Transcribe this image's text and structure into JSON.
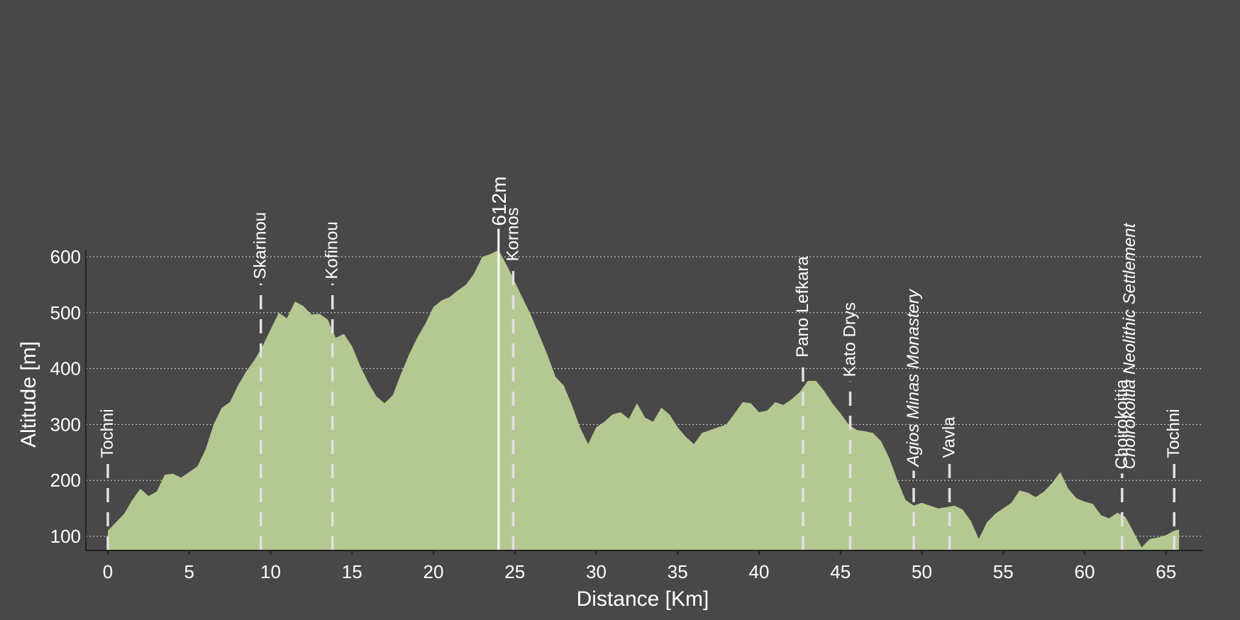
{
  "chart_data": {
    "type": "area",
    "title": "",
    "xlabel": "Distance [Km]",
    "ylabel": "Altitude [m]",
    "xlim": [
      0,
      65.8
    ],
    "ylim": [
      75,
      600
    ],
    "x_ticks": [
      0,
      5,
      10,
      15,
      20,
      25,
      30,
      35,
      40,
      45,
      50,
      55,
      60,
      65
    ],
    "y_ticks": [
      100,
      200,
      300,
      400,
      500,
      600
    ],
    "grid": "horizontal dotted",
    "colors": {
      "background": "#484848",
      "area_fill": "#b5c891",
      "grid": "#dddddd",
      "markers": "#e0e0e0",
      "text": "#ffffff"
    },
    "profile": [
      [
        0,
        110
      ],
      [
        0.5,
        125
      ],
      [
        1,
        140
      ],
      [
        1.5,
        165
      ],
      [
        2,
        185
      ],
      [
        2.5,
        172
      ],
      [
        3,
        180
      ],
      [
        3.5,
        210
      ],
      [
        4,
        212
      ],
      [
        4.5,
        205
      ],
      [
        5,
        215
      ],
      [
        5.5,
        225
      ],
      [
        6,
        255
      ],
      [
        6.5,
        300
      ],
      [
        7,
        330
      ],
      [
        7.5,
        340
      ],
      [
        8,
        370
      ],
      [
        8.5,
        395
      ],
      [
        9,
        415
      ],
      [
        9.5,
        440
      ],
      [
        10,
        470
      ],
      [
        10.5,
        500
      ],
      [
        11,
        490
      ],
      [
        11.5,
        520
      ],
      [
        12,
        512
      ],
      [
        12.5,
        497
      ],
      [
        13,
        498
      ],
      [
        13.5,
        488
      ],
      [
        14,
        455
      ],
      [
        14.5,
        462
      ],
      [
        15,
        440
      ],
      [
        15.5,
        405
      ],
      [
        16,
        375
      ],
      [
        16.5,
        350
      ],
      [
        17,
        338
      ],
      [
        17.5,
        352
      ],
      [
        18,
        390
      ],
      [
        18.5,
        425
      ],
      [
        19,
        455
      ],
      [
        19.5,
        480
      ],
      [
        20,
        510
      ],
      [
        20.5,
        522
      ],
      [
        21,
        528
      ],
      [
        21.5,
        540
      ],
      [
        22,
        550
      ],
      [
        22.5,
        570
      ],
      [
        23,
        600
      ],
      [
        23.5,
        605
      ],
      [
        24,
        612
      ],
      [
        24.5,
        585
      ],
      [
        25,
        555
      ],
      [
        25.5,
        525
      ],
      [
        26,
        495
      ],
      [
        26.5,
        460
      ],
      [
        27,
        425
      ],
      [
        27.5,
        385
      ],
      [
        28,
        370
      ],
      [
        28.5,
        335
      ],
      [
        29,
        295
      ],
      [
        29.5,
        265
      ],
      [
        30,
        295
      ],
      [
        30.5,
        305
      ],
      [
        31,
        318
      ],
      [
        31.5,
        322
      ],
      [
        32,
        310
      ],
      [
        32.5,
        338
      ],
      [
        33,
        312
      ],
      [
        33.5,
        305
      ],
      [
        34,
        330
      ],
      [
        34.5,
        318
      ],
      [
        35,
        295
      ],
      [
        35.5,
        278
      ],
      [
        36,
        265
      ],
      [
        36.5,
        285
      ],
      [
        37,
        290
      ],
      [
        37.5,
        295
      ],
      [
        38,
        300
      ],
      [
        38.5,
        320
      ],
      [
        39,
        340
      ],
      [
        39.5,
        338
      ],
      [
        40,
        322
      ],
      [
        40.5,
        325
      ],
      [
        41,
        340
      ],
      [
        41.5,
        335
      ],
      [
        42,
        345
      ],
      [
        42.5,
        358
      ],
      [
        43,
        378
      ],
      [
        43.5,
        378
      ],
      [
        44,
        360
      ],
      [
        44.5,
        338
      ],
      [
        45,
        320
      ],
      [
        45.5,
        300
      ],
      [
        46,
        290
      ],
      [
        46.5,
        288
      ],
      [
        47,
        285
      ],
      [
        47.5,
        270
      ],
      [
        48,
        240
      ],
      [
        48.5,
        200
      ],
      [
        49,
        165
      ],
      [
        49.5,
        155
      ],
      [
        50,
        160
      ],
      [
        50.5,
        155
      ],
      [
        51,
        150
      ],
      [
        51.5,
        152
      ],
      [
        52,
        155
      ],
      [
        52.5,
        148
      ],
      [
        53,
        128
      ],
      [
        53.5,
        95
      ],
      [
        54,
        125
      ],
      [
        54.5,
        140
      ],
      [
        55,
        150
      ],
      [
        55.5,
        160
      ],
      [
        56,
        182
      ],
      [
        56.5,
        178
      ],
      [
        57,
        170
      ],
      [
        57.5,
        180
      ],
      [
        58,
        195
      ],
      [
        58.5,
        215
      ],
      [
        59,
        185
      ],
      [
        59.5,
        168
      ],
      [
        60,
        162
      ],
      [
        60.5,
        158
      ],
      [
        61,
        138
      ],
      [
        61.5,
        132
      ],
      [
        62,
        142
      ],
      [
        62.5,
        135
      ],
      [
        63,
        108
      ],
      [
        63.5,
        80
      ],
      [
        64,
        95
      ],
      [
        64.5,
        98
      ],
      [
        65,
        102
      ],
      [
        65.5,
        110
      ],
      [
        65.8,
        112
      ]
    ],
    "peak": {
      "x": 24,
      "value": 612,
      "label": "612m"
    },
    "points_of_interest": [
      {
        "x": 0,
        "label": "Tochni",
        "italic": false,
        "label_alt": 245
      },
      {
        "x": 9.4,
        "label": "Skarinou",
        "italic": false,
        "label_alt": 565
      },
      {
        "x": 13.8,
        "label": "Kofinou",
        "italic": false,
        "label_alt": 565
      },
      {
        "x": 24.9,
        "label": "Kornos",
        "italic": false,
        "label_alt": 597
      },
      {
        "x": 42.7,
        "label": "Pano Lefkara",
        "italic": false,
        "label_alt": 425
      },
      {
        "x": 45.6,
        "label": "Kato Drys",
        "italic": false,
        "label_alt": 390
      },
      {
        "x": 49.5,
        "label": "Agios Minas Monastery",
        "italic": true,
        "label_alt": 230
      },
      {
        "x": 51.7,
        "label": "Vavla",
        "italic": false,
        "label_alt": 245
      },
      {
        "x": 62.3,
        "label": "Choirokoitia",
        "italic": false,
        "label_alt": 225
      },
      {
        "x": 62.3,
        "label": "Choirokoitia Neolithic Settlement",
        "italic": true,
        "label_alt": 225
      },
      {
        "x": 65.5,
        "label": "Tochni",
        "italic": false,
        "label_alt": 245
      }
    ]
  }
}
